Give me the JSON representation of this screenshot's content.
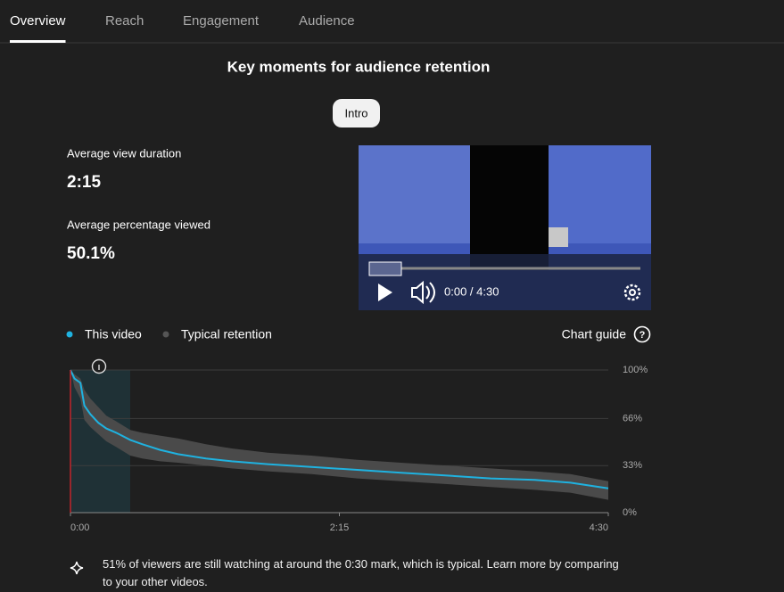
{
  "tabs": [
    "Overview",
    "Reach",
    "Engagement",
    "Audience"
  ],
  "active_tab": 0,
  "heading": "Key moments for audience retention",
  "metrics": [
    {
      "label": "Average view duration",
      "value": "2:15"
    },
    {
      "label": "Average percentage viewed",
      "value": "50.1%"
    }
  ],
  "player": {
    "time": "0:00 / 4:30"
  },
  "chart_guide": "Chart guide",
  "insight": "51% of viewers are still watching at around the 0:30 mark, which is typical. Learn more by comparing to your other videos.",
  "chart_data": {
    "type": "line",
    "x": [
      0,
      2,
      5,
      7,
      10,
      14,
      18,
      23,
      30,
      36,
      45,
      54,
      68,
      81,
      99,
      121,
      144,
      166,
      189,
      211,
      233,
      251,
      270
    ],
    "xlim": [
      0,
      270
    ],
    "xticks": [
      {
        "value": 0,
        "label": "0:00"
      },
      {
        "value": 135,
        "label": "2:15"
      },
      {
        "value": 270,
        "label": "4:30"
      }
    ],
    "ylim": [
      0,
      100
    ],
    "yticks": [
      {
        "value": 0,
        "label": "0%"
      },
      {
        "value": 33,
        "label": "33%"
      },
      {
        "value": 66,
        "label": "66%"
      },
      {
        "value": 100,
        "label": "100%"
      }
    ],
    "grid": true,
    "key_moment": {
      "label": "Intro",
      "start": 0,
      "end": 30
    },
    "series": [
      {
        "name": "This video",
        "color": "#1fb2e0",
        "values": [
          100,
          94,
          91,
          75,
          69,
          63,
          59,
          56,
          51,
          48,
          44,
          41,
          38,
          36,
          34,
          32,
          30,
          28,
          26,
          24,
          23,
          21,
          17
        ]
      },
      {
        "name": "Typical retention",
        "color": "#4a4a4a",
        "lower": [
          100,
          88,
          80,
          65,
          60,
          55,
          50,
          46,
          40,
          38,
          36,
          35,
          33,
          31,
          29,
          27,
          24,
          22,
          20,
          18,
          16,
          14,
          9
        ],
        "upper": [
          100,
          97,
          94,
          86,
          80,
          74,
          68,
          64,
          58,
          56,
          54,
          52,
          48,
          45,
          42,
          40,
          37,
          35,
          33,
          31,
          29,
          27,
          22
        ]
      }
    ]
  }
}
